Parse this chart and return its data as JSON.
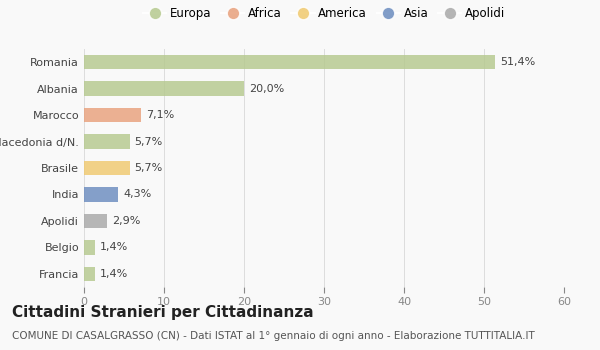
{
  "categories": [
    "Romania",
    "Albania",
    "Marocco",
    "Macedonia d/N.",
    "Brasile",
    "India",
    "Apolidi",
    "Belgio",
    "Francia"
  ],
  "values": [
    51.4,
    20.0,
    7.1,
    5.7,
    5.7,
    4.3,
    2.9,
    1.4,
    1.4
  ],
  "labels": [
    "51,4%",
    "20,0%",
    "7,1%",
    "5,7%",
    "5,7%",
    "4,3%",
    "2,9%",
    "1,4%",
    "1,4%"
  ],
  "colors": [
    "#b5c98e",
    "#b5c98e",
    "#e8a07c",
    "#b5c98e",
    "#f0c96e",
    "#6b8cbf",
    "#a8a8a8",
    "#b5c98e",
    "#b5c98e"
  ],
  "legend_items": [
    {
      "label": "Europa",
      "color": "#b5c98e"
    },
    {
      "label": "Africa",
      "color": "#e8a07c"
    },
    {
      "label": "America",
      "color": "#f0c96e"
    },
    {
      "label": "Asia",
      "color": "#6b8cbf"
    },
    {
      "label": "Apolidi",
      "color": "#a8a8a8"
    }
  ],
  "xlim": [
    0,
    60
  ],
  "xticks": [
    0,
    10,
    20,
    30,
    40,
    50,
    60
  ],
  "title": "Cittadini Stranieri per Cittadinanza",
  "subtitle": "COMUNE DI CASALGRASSO (CN) - Dati ISTAT al 1° gennaio di ogni anno - Elaborazione TUTTITALIA.IT",
  "background_color": "#f9f9f9",
  "bar_height": 0.55,
  "label_fontsize": 8,
  "title_fontsize": 11,
  "subtitle_fontsize": 7.5,
  "tick_fontsize": 8,
  "legend_fontsize": 8.5
}
